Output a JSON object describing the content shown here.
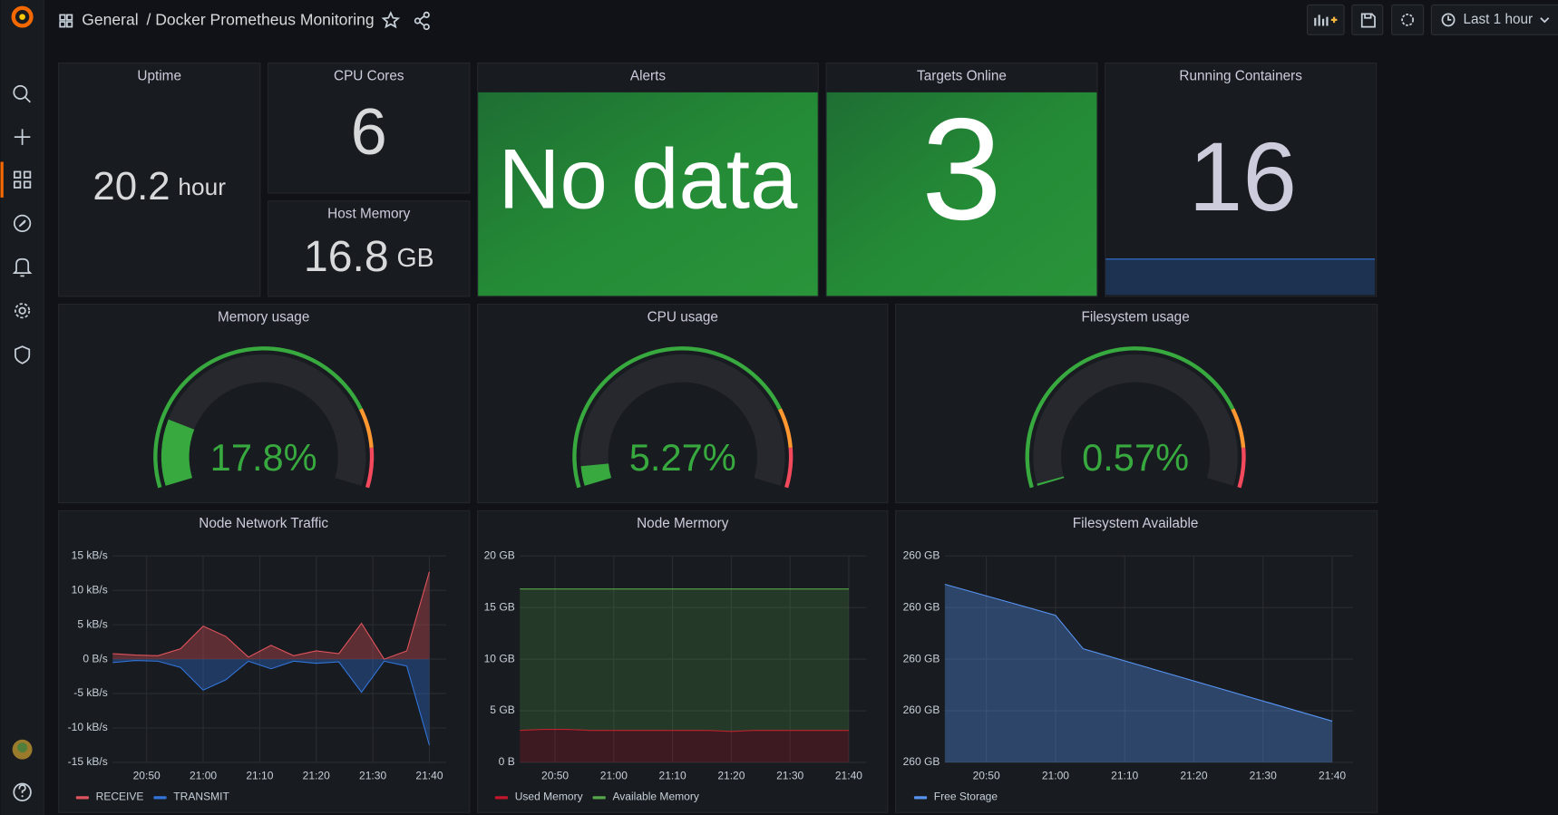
{
  "header": {
    "folder": "General",
    "title": "/ Docker Prometheus Monitoring",
    "time_range": "Last 1 hour"
  },
  "stats": [
    {
      "title": "Uptime",
      "value": 20.2,
      "unit": "hour"
    },
    {
      "title": "CPU Cores",
      "value": 6
    },
    {
      "title": "Host Memory",
      "value": 16.8,
      "unit": "GB"
    },
    {
      "title": "Alerts",
      "value": "No data"
    },
    {
      "title": "Targets Online",
      "value": 3
    },
    {
      "title": "Running Containers",
      "value": 16
    }
  ],
  "gauges": [
    {
      "title": "Memory usage",
      "value": 17.8,
      "value_label": "17.8%",
      "lim": [
        0,
        100
      ],
      "color": "#37a93f",
      "thresholds": [
        {
          "value": 80,
          "color": "#ff9830"
        },
        {
          "value": 90,
          "color": "#f2495c"
        }
      ]
    },
    {
      "title": "CPU usage",
      "value": 5.27,
      "value_label": "5.27%",
      "lim": [
        0,
        100
      ],
      "color": "#37a93f",
      "thresholds": [
        {
          "value": 80,
          "color": "#ff9830"
        },
        {
          "value": 90,
          "color": "#f2495c"
        }
      ]
    },
    {
      "title": "Filesystem usage",
      "value": 0.57,
      "value_label": "0.57%",
      "lim": [
        0,
        100
      ],
      "color": "#37a93f",
      "thresholds": [
        {
          "value": 80,
          "color": "#ff9830"
        },
        {
          "value": 90,
          "color": "#f2495c"
        }
      ]
    }
  ],
  "chart_data": [
    {
      "type": "area",
      "title": "Node Network Traffic",
      "x": [
        "20:44",
        "20:48",
        "20:52",
        "20:56",
        "21:00",
        "21:04",
        "21:08",
        "21:12",
        "21:16",
        "21:20",
        "21:24",
        "21:28",
        "21:32",
        "21:36",
        "21:40"
      ],
      "xlim": [
        "20:44",
        "21:43"
      ],
      "xticks": [
        "20:50",
        "21:00",
        "21:10",
        "21:20",
        "21:30",
        "21:40"
      ],
      "ylim": [
        -15,
        15
      ],
      "yticks": [
        {
          "value": -15,
          "label": "-15 kB/s"
        },
        {
          "value": -10,
          "label": "-10 kB/s"
        },
        {
          "value": -5,
          "label": "-5 kB/s"
        },
        {
          "value": 0,
          "label": "0 B/s"
        },
        {
          "value": 5,
          "label": "5 kB/s"
        },
        {
          "value": 10,
          "label": "10 kB/s"
        },
        {
          "value": 15,
          "label": "15 kB/s"
        }
      ],
      "grid": true,
      "series": [
        {
          "name": "RECEIVE",
          "color": "#e0535c",
          "values": [
            0.8,
            0.6,
            0.5,
            1.5,
            4.8,
            3.3,
            0.3,
            2.0,
            0.5,
            1.2,
            0.8,
            5.2,
            0.0,
            1.2,
            12.7
          ]
        },
        {
          "name": "TRANSMIT",
          "color": "#3274d9",
          "values": [
            -0.5,
            -0.2,
            -0.3,
            -1.2,
            -4.5,
            -3.0,
            -0.3,
            -1.4,
            -0.3,
            -0.6,
            -0.4,
            -4.8,
            -0.3,
            -1.0,
            -12.5
          ]
        }
      ]
    },
    {
      "type": "stacked_area",
      "title": "Node Mermory",
      "x": [
        "20:44",
        "20:48",
        "20:52",
        "20:56",
        "21:00",
        "21:04",
        "21:08",
        "21:12",
        "21:16",
        "21:20",
        "21:24",
        "21:28",
        "21:32",
        "21:36",
        "21:40"
      ],
      "xlim": [
        "20:44",
        "21:43"
      ],
      "xticks": [
        "20:50",
        "21:00",
        "21:10",
        "21:20",
        "21:30",
        "21:40"
      ],
      "ylim": [
        0,
        20
      ],
      "yticks": [
        {
          "value": 0,
          "label": "0 B"
        },
        {
          "value": 5,
          "label": "5 GB"
        },
        {
          "value": 10,
          "label": "10 GB"
        },
        {
          "value": 15,
          "label": "15 GB"
        },
        {
          "value": 20,
          "label": "20 GB"
        }
      ],
      "grid": true,
      "series": [
        {
          "name": "Used Memory",
          "color": "#c4162a",
          "values": [
            3.1,
            3.2,
            3.2,
            3.1,
            3.1,
            3.1,
            3.1,
            3.1,
            3.1,
            3.0,
            3.1,
            3.1,
            3.1,
            3.1,
            3.1
          ]
        },
        {
          "name": "Available Memory",
          "color": "#56a64b",
          "values": [
            13.7,
            13.6,
            13.6,
            13.7,
            13.7,
            13.7,
            13.7,
            13.7,
            13.7,
            13.8,
            13.7,
            13.7,
            13.7,
            13.7,
            13.7
          ]
        }
      ]
    },
    {
      "type": "area",
      "title": "Filesystem Available",
      "x": [
        "20:44",
        "21:00",
        "21:04",
        "21:40"
      ],
      "xlim": [
        "20:44",
        "21:43"
      ],
      "xticks": [
        "20:50",
        "21:00",
        "21:10",
        "21:20",
        "21:30",
        "21:40"
      ],
      "ylim": [
        259.6,
        260.4
      ],
      "yticks": [
        {
          "value": 259.6,
          "label": "260 GB"
        },
        {
          "value": 259.8,
          "label": "260 GB"
        },
        {
          "value": 260,
          "label": "260 GB"
        },
        {
          "value": 260.2,
          "label": "260 GB"
        },
        {
          "value": 260.4,
          "label": "260 GB"
        }
      ],
      "grid": true,
      "series": [
        {
          "name": "Free Storage",
          "color": "#5794f2",
          "values": [
            260.29,
            260.17,
            260.04,
            259.76
          ]
        }
      ]
    }
  ]
}
